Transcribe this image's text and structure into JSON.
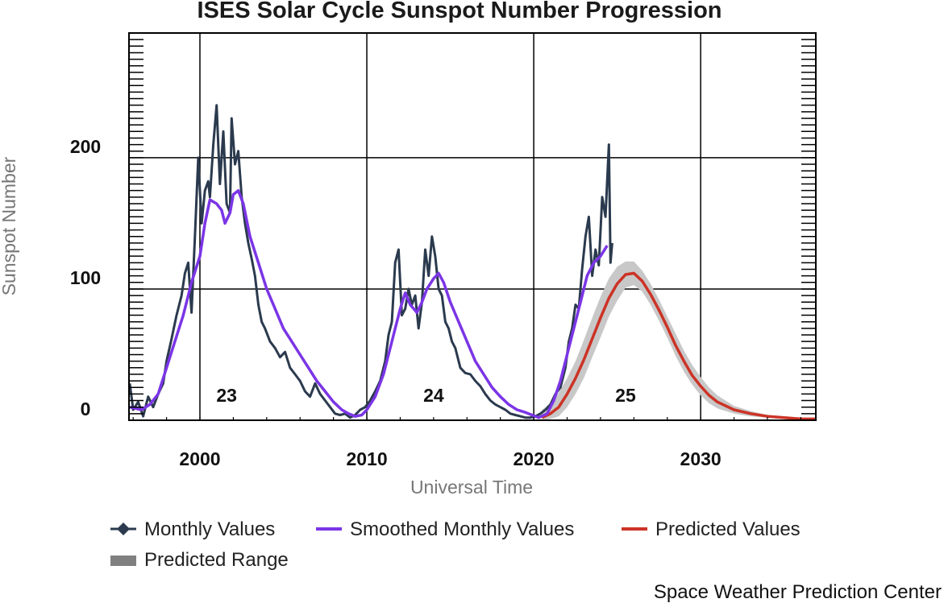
{
  "chart_data": {
    "type": "line",
    "title": "ISES Solar Cycle Sunspot Number Progression",
    "xlabel": "Universal Time",
    "ylabel": "Sunspot Number",
    "xlim": [
      1995.75,
      2036.9
    ],
    "ylim": [
      0,
      295
    ],
    "x_ticks": [
      2000,
      2010,
      2020,
      2030
    ],
    "y_ticks": [
      0,
      100,
      200
    ],
    "x_tick_labels": [
      "2000",
      "2010",
      "2020",
      "2030"
    ],
    "y_tick_labels": [
      "0",
      "100",
      "200"
    ],
    "grid": true,
    "legend_position": "bottom",
    "cycle_labels": [
      {
        "text": "23",
        "x": 2001.6
      },
      {
        "text": "24",
        "x": 2014.0
      },
      {
        "text": "25",
        "x": 2025.5
      }
    ],
    "colors": {
      "monthly": "#2b3a4e",
      "smoothed": "#7b35e6",
      "predicted": "#cc3326",
      "range": "#c8c8c8",
      "legend_range": "#808080"
    },
    "series": [
      {
        "name": "Monthly Values",
        "x": [
          1995.8,
          1996.0,
          1996.3,
          1996.6,
          1996.9,
          1997.2,
          1997.5,
          1997.8,
          1998.0,
          1998.3,
          1998.6,
          1998.9,
          1999.1,
          1999.3,
          1999.5,
          1999.7,
          1999.9,
          2000.1,
          2000.3,
          2000.5,
          2000.6,
          2000.8,
          2001.0,
          2001.2,
          2001.4,
          2001.6,
          2001.8,
          2001.9,
          2002.1,
          2002.3,
          2002.5,
          2002.7,
          2002.9,
          2003.1,
          2003.3,
          2003.5,
          2003.7,
          2003.9,
          2004.2,
          2004.5,
          2004.8,
          2005.1,
          2005.4,
          2005.7,
          2006.0,
          2006.3,
          2006.6,
          2006.9,
          2007.2,
          2007.5,
          2007.8,
          2008.1,
          2008.4,
          2008.7,
          2009.0,
          2009.3,
          2009.6,
          2009.9,
          2010.2,
          2010.5,
          2010.8,
          2011.1,
          2011.3,
          2011.5,
          2011.7,
          2011.9,
          2012.1,
          2012.3,
          2012.5,
          2012.7,
          2012.9,
          2013.1,
          2013.3,
          2013.5,
          2013.7,
          2013.9,
          2014.1,
          2014.3,
          2014.5,
          2014.7,
          2014.9,
          2015.1,
          2015.3,
          2015.6,
          2015.9,
          2016.2,
          2016.5,
          2016.8,
          2017.1,
          2017.4,
          2017.7,
          2018.0,
          2018.3,
          2018.6,
          2018.9,
          2019.2,
          2019.5,
          2019.8,
          2020.1,
          2020.4,
          2020.7,
          2021.0,
          2021.3,
          2021.6,
          2021.9,
          2022.1,
          2022.3,
          2022.5,
          2022.7,
          2022.9,
          2023.1,
          2023.3,
          2023.5,
          2023.7,
          2023.9,
          2024.1,
          2024.3,
          2024.5,
          2024.6,
          2024.7
        ],
        "y": [
          28,
          8,
          14,
          3,
          18,
          10,
          20,
          28,
          45,
          62,
          80,
          95,
          112,
          120,
          82,
          140,
          200,
          150,
          175,
          182,
          170,
          210,
          240,
          180,
          220,
          165,
          158,
          230,
          195,
          205,
          170,
          150,
          135,
          123,
          110,
          88,
          75,
          70,
          60,
          55,
          48,
          52,
          40,
          35,
          30,
          22,
          18,
          28,
          20,
          15,
          10,
          5,
          4,
          5,
          2,
          4,
          8,
          10,
          15,
          22,
          30,
          45,
          65,
          75,
          120,
          130,
          80,
          85,
          100,
          88,
          95,
          70,
          90,
          130,
          110,
          140,
          125,
          100,
          95,
          75,
          70,
          60,
          55,
          40,
          36,
          35,
          30,
          26,
          20,
          15,
          12,
          10,
          8,
          5,
          4,
          3,
          2,
          2,
          3,
          5,
          8,
          12,
          20,
          25,
          40,
          60,
          70,
          88,
          85,
          115,
          140,
          155,
          110,
          130,
          118,
          170,
          155,
          210,
          120,
          135
        ],
        "marker": "diamond"
      },
      {
        "name": "Smoothed Monthly Values",
        "x": [
          1995.8,
          1996.5,
          1997.0,
          1997.5,
          1998.0,
          1998.5,
          1999.0,
          1999.5,
          2000.0,
          2000.3,
          2000.6,
          2001.0,
          2001.3,
          2001.5,
          2001.8,
          2002.0,
          2002.3,
          2002.6,
          2003.0,
          2003.5,
          2004.0,
          2004.5,
          2005.0,
          2005.5,
          2006.0,
          2006.5,
          2007.0,
          2007.5,
          2008.0,
          2008.5,
          2008.9,
          2009.3,
          2009.7,
          2010.0,
          2010.5,
          2011.0,
          2011.5,
          2012.0,
          2012.3,
          2012.6,
          2013.0,
          2013.3,
          2013.6,
          2014.0,
          2014.3,
          2014.6,
          2015.0,
          2015.5,
          2016.0,
          2016.5,
          2017.0,
          2017.5,
          2018.0,
          2018.5,
          2019.0,
          2019.5,
          2019.9,
          2020.3,
          2020.8,
          2021.2,
          2021.6,
          2022.0,
          2022.4,
          2022.8,
          2023.2,
          2023.6,
          2024.0,
          2024.4
        ],
        "y": [
          10,
          8,
          12,
          20,
          40,
          60,
          80,
          105,
          125,
          150,
          168,
          165,
          160,
          150,
          158,
          172,
          175,
          165,
          140,
          120,
          100,
          85,
          70,
          60,
          50,
          40,
          30,
          22,
          14,
          8,
          5,
          3,
          4,
          8,
          18,
          35,
          60,
          85,
          97,
          88,
          82,
          90,
          100,
          108,
          112,
          105,
          90,
          75,
          60,
          45,
          35,
          25,
          18,
          12,
          8,
          6,
          4,
          2,
          5,
          15,
          30,
          50,
          70,
          90,
          110,
          120,
          125,
          133
        ]
      },
      {
        "name": "Predicted Values",
        "x": [
          2020.5,
          2021.0,
          2021.5,
          2022.0,
          2022.5,
          2023.0,
          2023.5,
          2024.0,
          2024.5,
          2025.0,
          2025.5,
          2026.0,
          2026.5,
          2027.0,
          2027.5,
          2028.0,
          2028.5,
          2029.0,
          2029.5,
          2030.0,
          2030.5,
          2031.0,
          2032.0,
          2033.0,
          2034.0,
          2035.0,
          2036.0,
          2036.9
        ],
        "y": [
          2,
          5,
          10,
          20,
          32,
          46,
          62,
          78,
          93,
          104,
          111,
          112,
          106,
          96,
          84,
          71,
          57,
          45,
          34,
          26,
          19,
          14,
          8,
          5,
          3,
          2,
          1,
          1
        ]
      },
      {
        "name": "Predicted Range",
        "x": [
          2020.5,
          2021.0,
          2021.5,
          2022.0,
          2022.5,
          2023.0,
          2023.5,
          2024.0,
          2024.5,
          2025.0,
          2025.5,
          2026.0,
          2026.5,
          2027.0,
          2027.5,
          2028.0,
          2028.5,
          2029.0,
          2029.5,
          2030.0,
          2030.5,
          2031.0,
          2032.0,
          2033.0,
          2034.0,
          2035.0,
          2036.0,
          2036.9
        ],
        "upper": [
          8,
          13,
          21,
          32,
          45,
          61,
          78,
          94,
          108,
          117,
          121,
          121,
          114,
          104,
          92,
          79,
          66,
          53,
          42,
          33,
          25,
          19,
          11,
          7,
          4,
          3,
          2,
          2
        ],
        "lower": [
          0,
          1,
          3,
          10,
          20,
          32,
          48,
          63,
          79,
          91,
          101,
          103,
          98,
          88,
          76,
          63,
          49,
          37,
          27,
          19,
          13,
          9,
          5,
          3,
          2,
          1,
          0,
          0
        ]
      }
    ]
  },
  "legend": {
    "monthly": "Monthly Values",
    "smoothed": "Smoothed Monthly Values",
    "predicted": "Predicted Values",
    "range": "Predicted Range"
  },
  "credit": "Space Weather Prediction Center"
}
